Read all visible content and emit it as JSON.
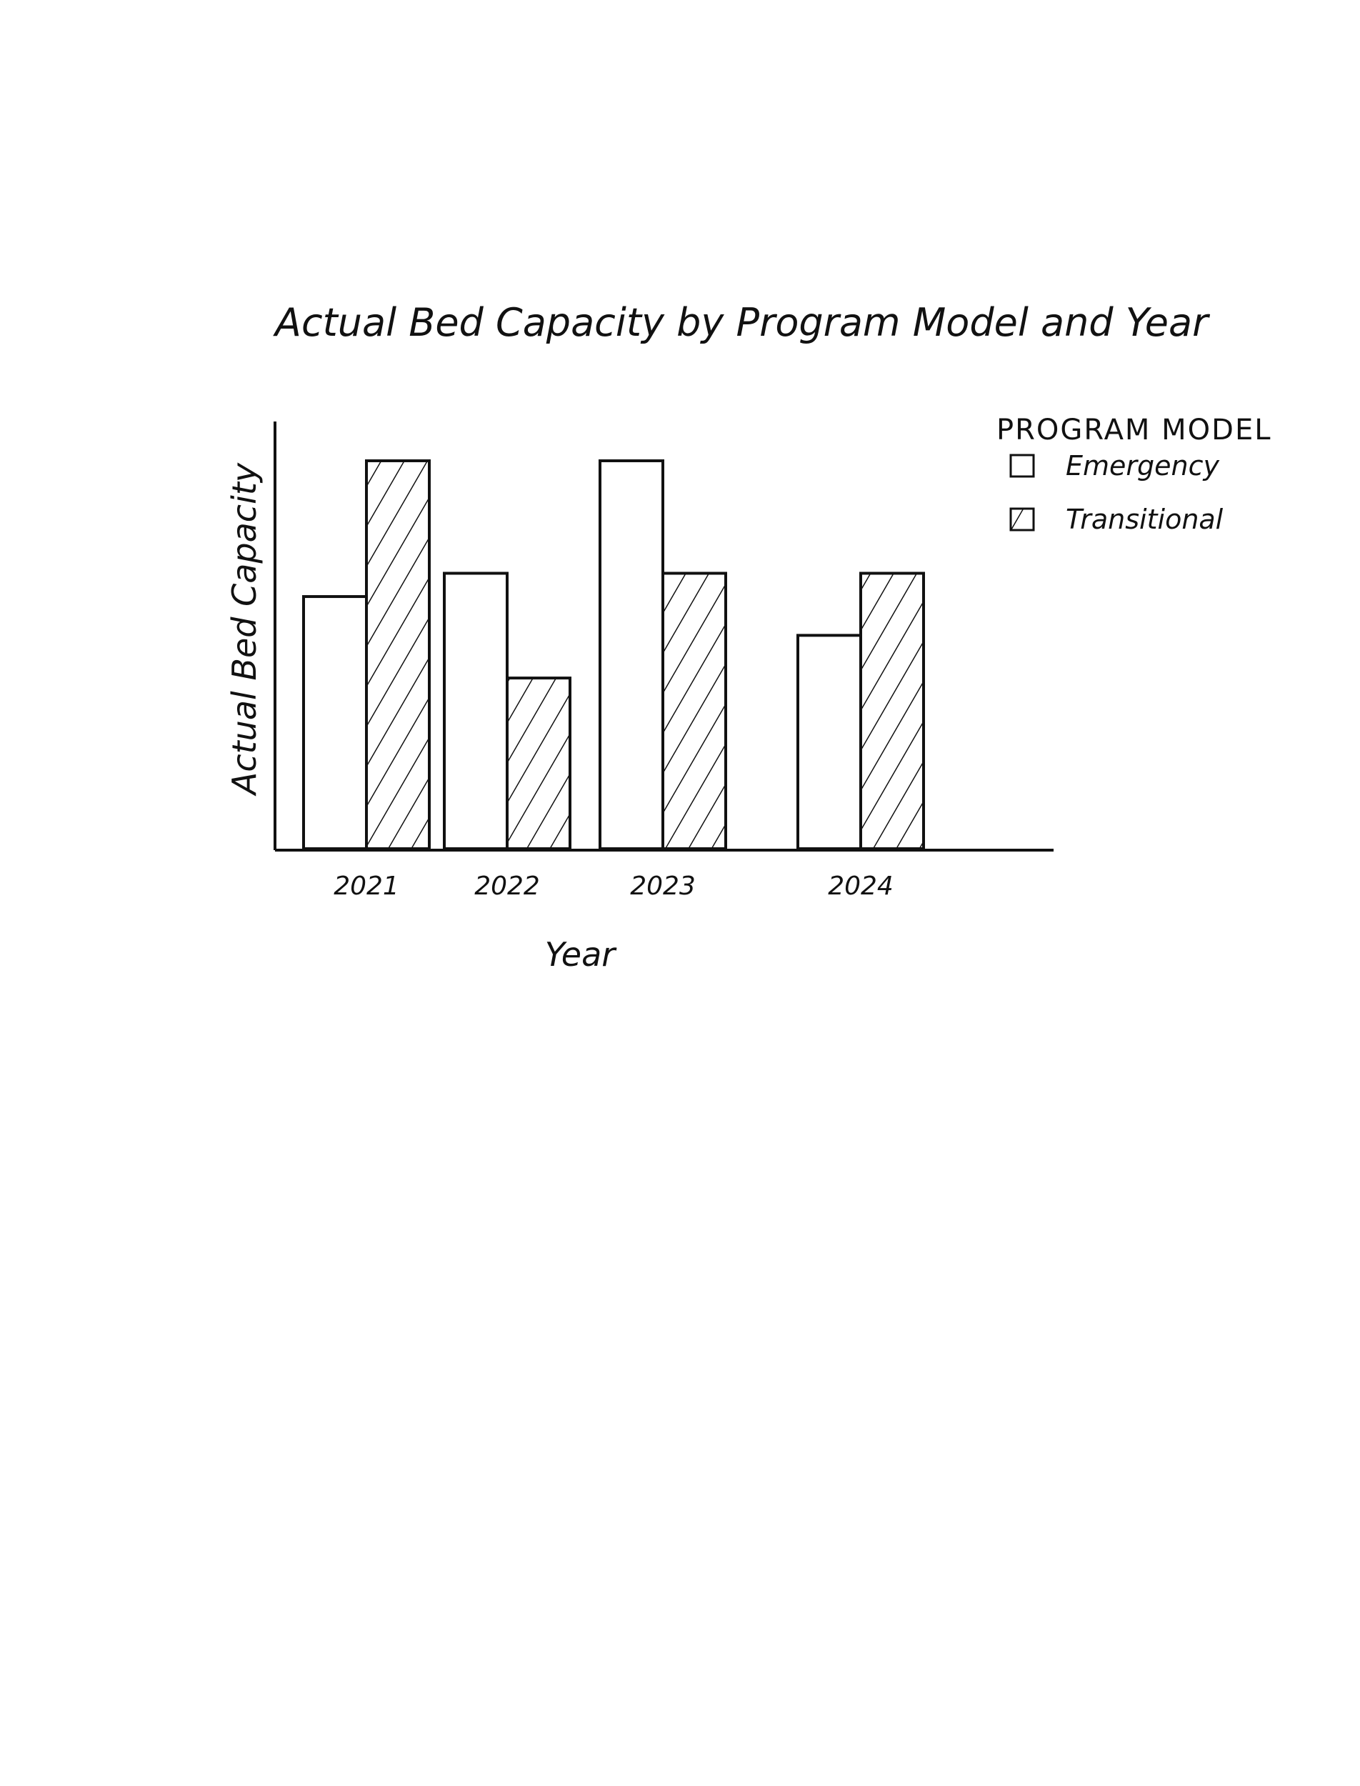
{
  "chart_data": {
    "type": "bar",
    "title": "Actual Bed Capacity by Program Model and Year",
    "xlabel": "Year",
    "ylabel": "Actual Bed Capacity",
    "categories": [
      "2021",
      "2022",
      "2023",
      "2024"
    ],
    "series": [
      {
        "name": "Emergency",
        "values": [
          65,
          71,
          100,
          55
        ],
        "pattern": "none"
      },
      {
        "name": "Transitional",
        "values": [
          100,
          44,
          71,
          71
        ],
        "pattern": "diagonal-hatch"
      }
    ],
    "ylim": [
      0,
      110
    ],
    "grid": false,
    "y_ticks_shown": false,
    "legend": {
      "title": "PROGRAM MODEL",
      "placement": "top-right",
      "items": [
        "Emergency",
        "Transitional"
      ]
    },
    "colors": {
      "ink": "#111111",
      "background": "#ffffff"
    },
    "style": "hand-drawn sketch"
  }
}
